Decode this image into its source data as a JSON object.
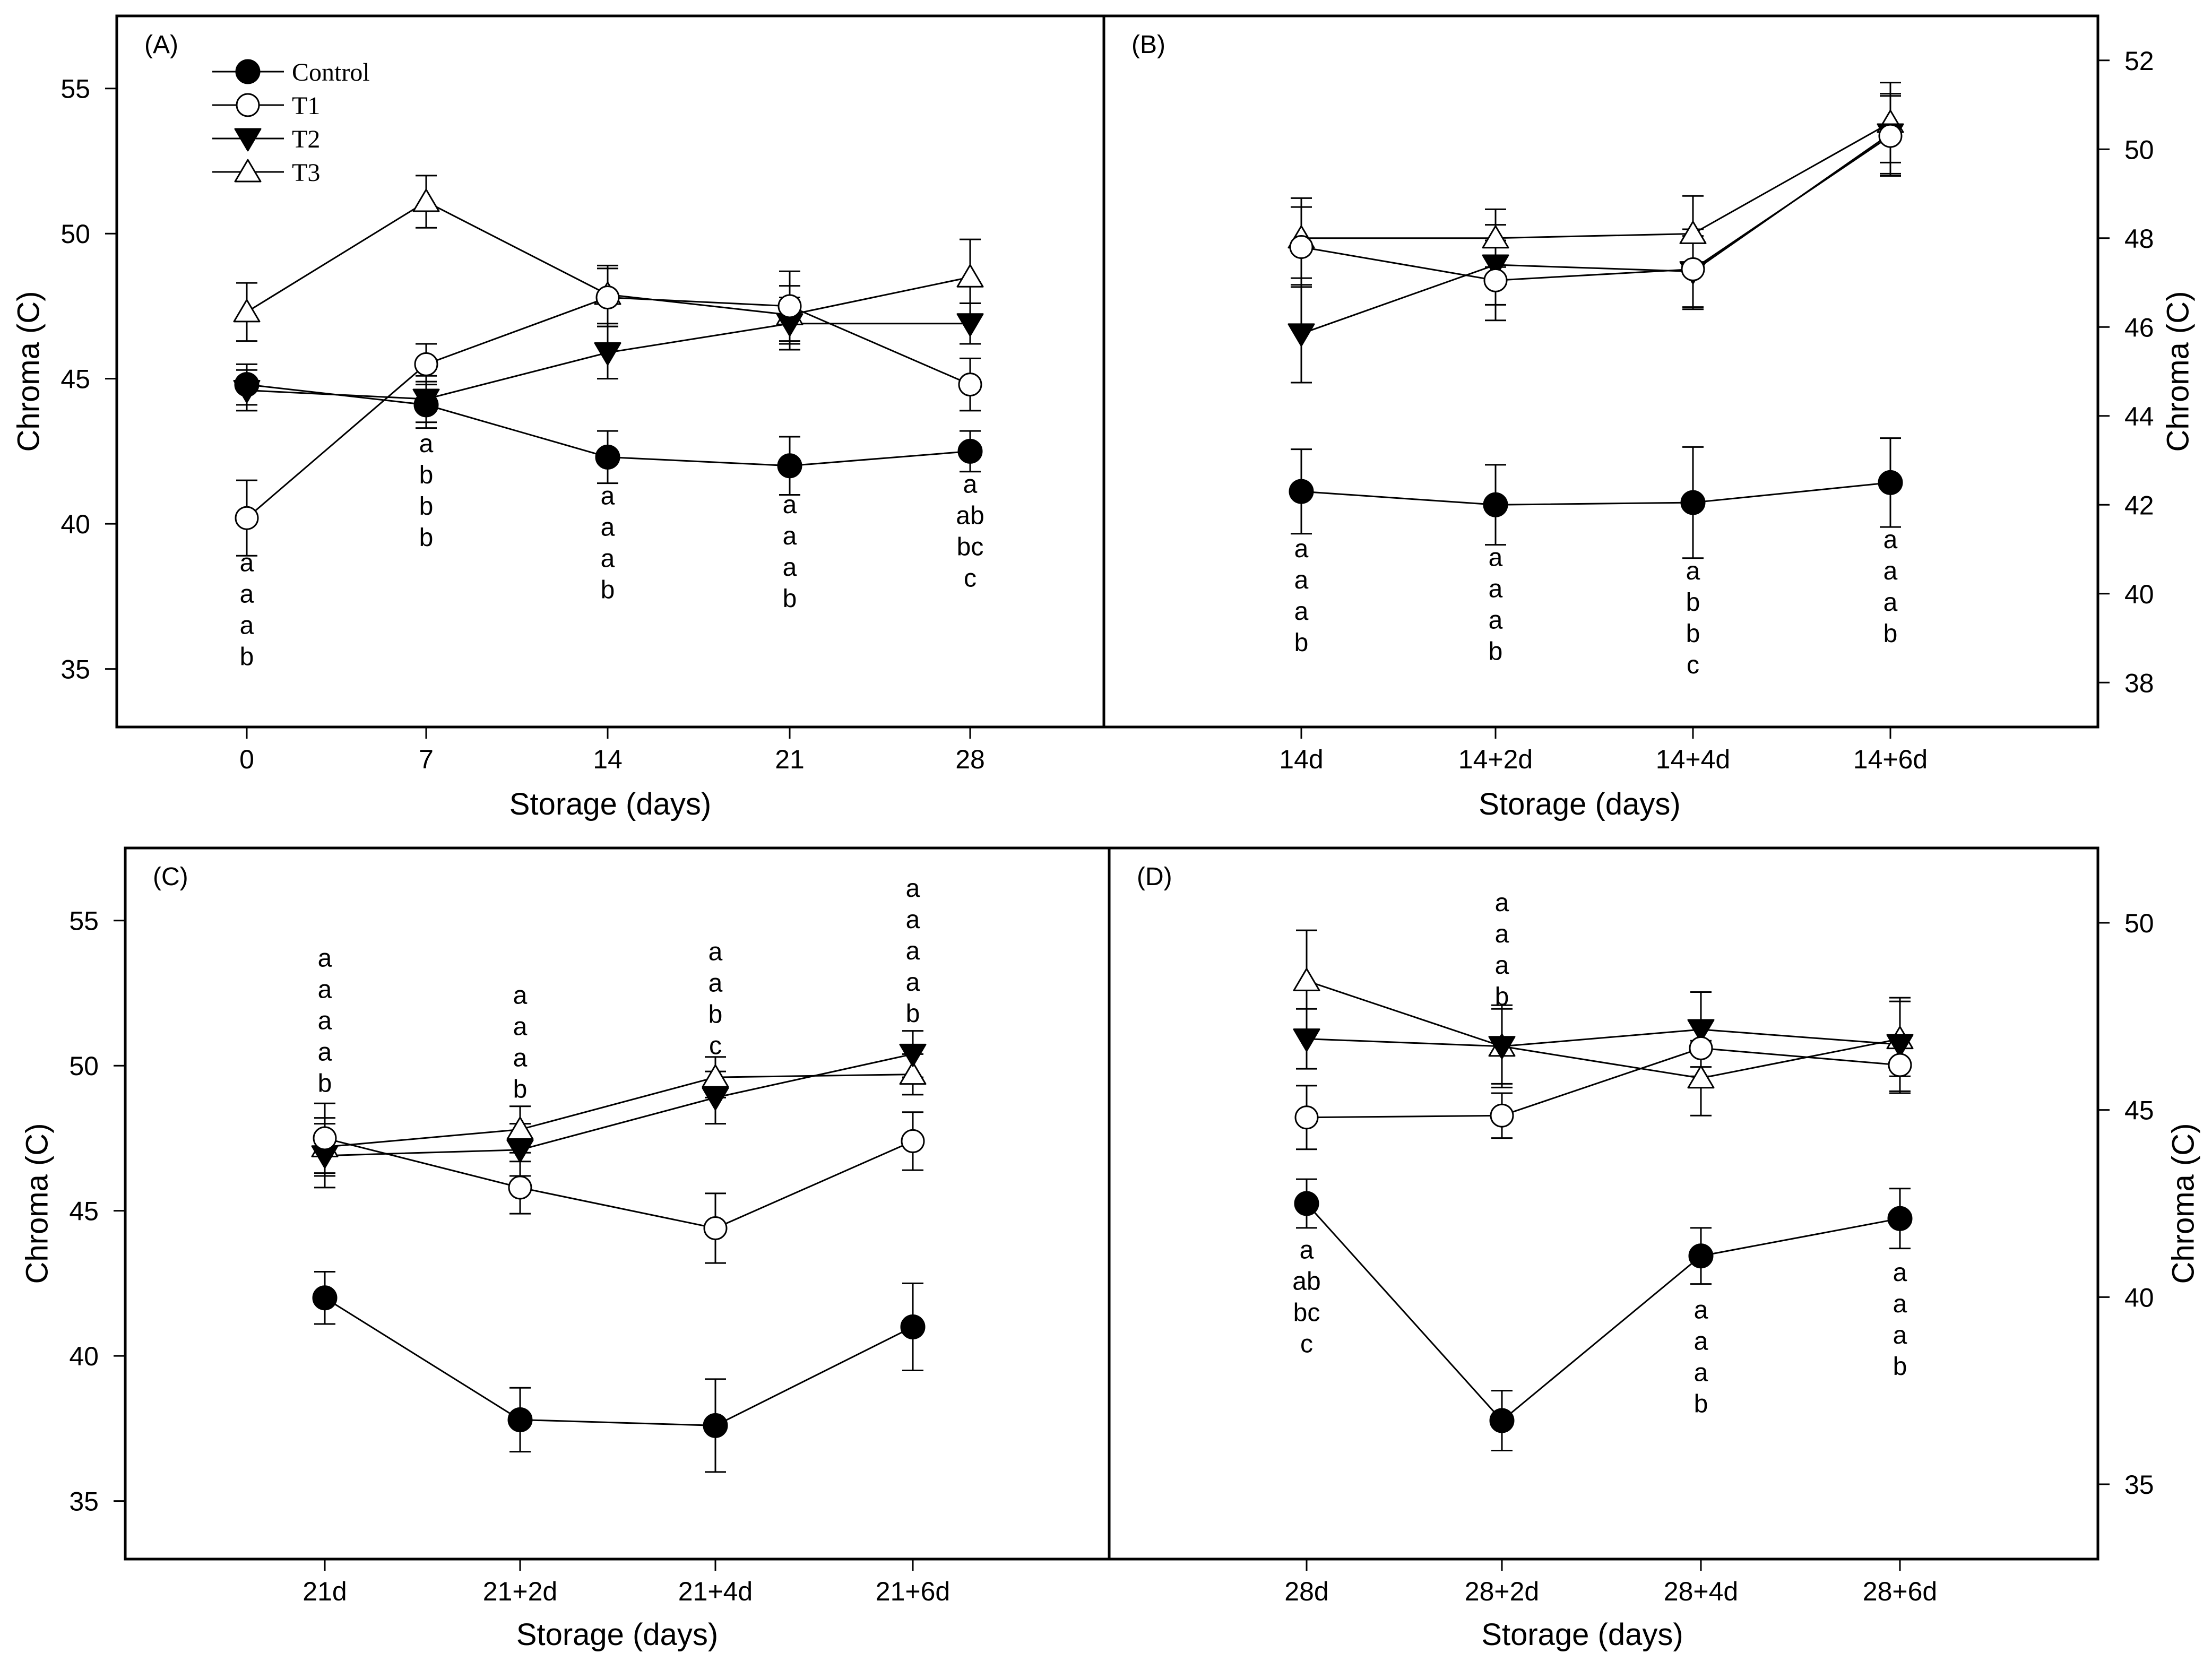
{
  "chart_data": [
    {
      "panel": "A",
      "type": "line",
      "panel_label": "(A)",
      "xlabel": "Storage (days)",
      "ylabel": "Chroma (C)",
      "y_axis_side": "left",
      "categories": [
        "0",
        "7",
        "14",
        "21",
        "28"
      ],
      "ylim": [
        33,
        57.5
      ],
      "yticks": [
        35,
        40,
        45,
        50,
        55
      ],
      "grid": false,
      "legend": {
        "placement": "top-left",
        "entries": [
          {
            "name": "Control",
            "marker": "filled-circle"
          },
          {
            "name": "T1",
            "marker": "open-circle"
          },
          {
            "name": "T2",
            "marker": "filled-triangle-down"
          },
          {
            "name": "T3",
            "marker": "open-triangle-up"
          }
        ]
      },
      "series": [
        {
          "name": "Control",
          "marker": "filled-circle",
          "values": [
            44.8,
            44.1,
            42.3,
            42.0,
            42.5
          ],
          "errors": [
            0.7,
            0.8,
            0.9,
            1.0,
            0.7
          ]
        },
        {
          "name": "T1",
          "marker": "open-circle",
          "values": [
            40.2,
            45.5,
            47.8,
            47.5,
            44.8
          ],
          "errors": [
            1.3,
            0.7,
            1.0,
            1.2,
            0.9
          ]
        },
        {
          "name": "T2",
          "marker": "filled-triangle-down",
          "values": [
            44.6,
            44.3,
            45.9,
            46.9,
            46.9
          ],
          "errors": [
            0.7,
            0.8,
            0.9,
            0.9,
            0.7
          ]
        },
        {
          "name": "T3",
          "marker": "open-triangle-up",
          "values": [
            47.3,
            51.1,
            47.9,
            47.2,
            48.5
          ],
          "errors": [
            1.0,
            0.9,
            1.0,
            1.0,
            1.3
          ]
        }
      ],
      "significance_labels": [
        {
          "x": "0",
          "labels": [
            "a",
            "a",
            "a",
            "b"
          ],
          "anchor": "below",
          "y": 39.1
        },
        {
          "x": "7",
          "labels": [
            "a",
            "b",
            "b",
            "b"
          ],
          "anchor": "below",
          "y": 43.2
        },
        {
          "x": "14",
          "labels": [
            "a",
            "a",
            "a",
            "b"
          ],
          "anchor": "below",
          "y": 41.4
        },
        {
          "x": "21",
          "labels": [
            "a",
            "a",
            "a",
            "b"
          ],
          "anchor": "below",
          "y": 41.1
        },
        {
          "x": "28",
          "labels": [
            "a",
            "ab",
            "bc",
            "c"
          ],
          "anchor": "below",
          "y": 41.8
        }
      ]
    },
    {
      "panel": "B",
      "type": "line",
      "panel_label": "(B)",
      "xlabel": "Storage (days)",
      "ylabel": "Chroma (C)",
      "y_axis_side": "right",
      "categories": [
        "14d",
        "14+2d",
        "14+4d",
        "14+6d"
      ],
      "ylim": [
        37,
        53
      ],
      "yticks": [
        38,
        40,
        42,
        44,
        46,
        48,
        50,
        52
      ],
      "grid": false,
      "series": [
        {
          "name": "Control",
          "marker": "filled-circle",
          "values": [
            42.3,
            42.0,
            42.05,
            42.5
          ],
          "errors": [
            0.95,
            0.9,
            1.25,
            1.0
          ]
        },
        {
          "name": "T1",
          "marker": "open-circle",
          "values": [
            47.8,
            47.05,
            47.3,
            50.3
          ],
          "errors": [
            0.9,
            0.9,
            0.9,
            0.9
          ]
        },
        {
          "name": "T2",
          "marker": "filled-triangle-down",
          "values": [
            45.85,
            47.4,
            47.25,
            50.35
          ],
          "errors": [
            1.1,
            0.9,
            0.8,
            0.9
          ]
        },
        {
          "name": "T3",
          "marker": "open-triangle-up",
          "values": [
            48.0,
            48.0,
            48.1,
            50.6
          ],
          "errors": [
            0.9,
            0.65,
            0.85,
            0.9
          ]
        }
      ],
      "significance_labels": [
        {
          "x": "14d",
          "labels": [
            "a",
            "a",
            "a",
            "b"
          ],
          "anchor": "below",
          "y": 41.3
        },
        {
          "x": "14+2d",
          "labels": [
            "a",
            "a",
            "a",
            "b"
          ],
          "anchor": "below",
          "y": 41.1
        },
        {
          "x": "14+4d",
          "labels": [
            "a",
            "b",
            "b",
            "c"
          ],
          "anchor": "below",
          "y": 40.8
        },
        {
          "x": "14+6d",
          "labels": [
            "a",
            "a",
            "a",
            "b"
          ],
          "anchor": "below",
          "y": 41.5
        }
      ]
    },
    {
      "panel": "C",
      "type": "line",
      "panel_label": "(C)",
      "xlabel": "Storage (days)",
      "ylabel": "Chroma (C)",
      "y_axis_side": "left",
      "categories": [
        "21d",
        "21+2d",
        "21+4d",
        "21+6d"
      ],
      "ylim": [
        33,
        57.5
      ],
      "yticks": [
        35,
        40,
        45,
        50,
        55
      ],
      "grid": false,
      "series": [
        {
          "name": "Control",
          "marker": "filled-circle",
          "values": [
            42.0,
            37.8,
            37.6,
            41.0
          ],
          "errors": [
            0.9,
            1.1,
            1.6,
            1.5
          ]
        },
        {
          "name": "T1",
          "marker": "open-circle",
          "values": [
            47.5,
            45.8,
            44.4,
            47.4
          ],
          "errors": [
            1.2,
            0.9,
            1.2,
            1.0
          ]
        },
        {
          "name": "T2",
          "marker": "filled-triangle-down",
          "values": [
            46.9,
            47.1,
            48.9,
            50.4
          ],
          "errors": [
            1.1,
            0.9,
            0.9,
            0.8
          ]
        },
        {
          "name": "T3",
          "marker": "open-triangle-up",
          "values": [
            47.2,
            47.8,
            49.6,
            49.7
          ],
          "errors": [
            1.0,
            0.8,
            0.7,
            0.7
          ]
        }
      ],
      "significance_labels": [
        {
          "x": "21d",
          "labels": [
            "a",
            "a",
            "a",
            "a",
            "b"
          ],
          "anchor": "above",
          "y": 49.1
        },
        {
          "x": "21+2d",
          "labels": [
            "a",
            "a",
            "a",
            "b"
          ],
          "anchor": "above",
          "y": 48.9
        },
        {
          "x": "21+4d",
          "labels": [
            "a",
            "a",
            "b",
            "c"
          ],
          "anchor": "above",
          "y": 50.4
        },
        {
          "x": "21+6d",
          "labels": [
            "a",
            "a",
            "a",
            "a",
            "b"
          ],
          "anchor": "above",
          "y": 51.5
        }
      ]
    },
    {
      "panel": "D",
      "type": "line",
      "panel_label": "(D)",
      "xlabel": "Storage (days)",
      "ylabel": "Chroma (C)",
      "y_axis_side": "right",
      "categories": [
        "28d",
        "28+2d",
        "28+4d",
        "28+6d"
      ],
      "ylim": [
        33,
        52
      ],
      "yticks": [
        35,
        40,
        45,
        50
      ],
      "grid": false,
      "series": [
        {
          "name": "Control",
          "marker": "filled-circle",
          "values": [
            42.5,
            36.7,
            41.1,
            42.1
          ],
          "errors": [
            0.65,
            0.8,
            0.75,
            0.8
          ]
        },
        {
          "name": "T1",
          "marker": "open-circle",
          "values": [
            44.8,
            44.85,
            46.65,
            46.2
          ],
          "errors": [
            0.85,
            0.6,
            0.75,
            0.75
          ]
        },
        {
          "name": "T2",
          "marker": "filled-triangle-down",
          "values": [
            46.9,
            46.7,
            47.15,
            46.75
          ],
          "errors": [
            0.8,
            1.0,
            1.0,
            1.25
          ]
        },
        {
          "name": "T3",
          "marker": "open-triangle-up",
          "values": [
            48.45,
            46.7,
            45.85,
            46.9
          ],
          "errors": [
            1.35,
            1.1,
            1.0,
            1.0
          ]
        }
      ],
      "significance_labels": [
        {
          "x": "28d",
          "labels": [
            "a",
            "ab",
            "bc",
            "c"
          ],
          "anchor": "below",
          "y": 41.6
        },
        {
          "x": "28+2d",
          "labels": [
            "a",
            "a",
            "a",
            "b"
          ],
          "anchor": "above",
          "y": 47.8
        },
        {
          "x": "28+4d",
          "labels": [
            "a",
            "a",
            "a",
            "b"
          ],
          "anchor": "below",
          "y": 40.0
        },
        {
          "x": "28+6d",
          "labels": [
            "a",
            "a",
            "a",
            "b"
          ],
          "anchor": "below",
          "y": 41.0
        }
      ]
    }
  ]
}
